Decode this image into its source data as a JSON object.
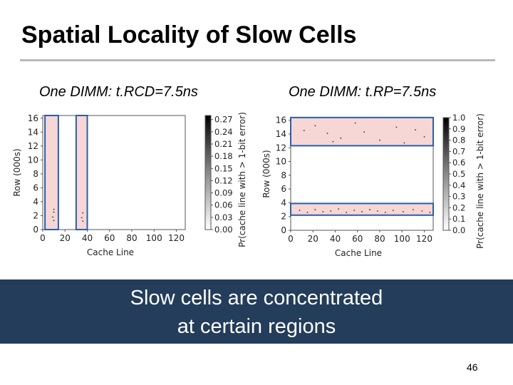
{
  "slide": {
    "title": "Spatial Locality of Slow Cells",
    "banner_line1": "Slow cells are concentrated",
    "banner_line2": "at certain regions",
    "page_number": "46"
  },
  "chart_data": [
    {
      "type": "heatmap",
      "title": "One DIMM: t.RCD=7.5ns",
      "xlabel": "Cache Line",
      "ylabel": "Row (000s)",
      "xlim": [
        0,
        128
      ],
      "ylim": [
        0,
        16.384
      ],
      "x_ticks": [
        0,
        20,
        40,
        60,
        80,
        100,
        120
      ],
      "y_ticks": [
        0,
        2,
        4,
        6,
        8,
        10,
        12,
        14,
        16
      ],
      "colorbar_label": "Pr(cache line with > 1-bit error)",
      "colorbar_ticks": [
        "0.00",
        "0.03",
        "0.06",
        "0.09",
        "0.12",
        "0.15",
        "0.18",
        "0.21",
        "0.24",
        "0.27"
      ],
      "colorbar_range": [
        0,
        0.28
      ],
      "highlight_color": "#2a5fa8",
      "slow_region_color": "#f7d6d6",
      "slow_regions": [
        {
          "x": [
            2,
            14
          ],
          "y": [
            0,
            16.384
          ]
        },
        {
          "x": [
            30,
            40
          ],
          "y": [
            0,
            16.384
          ]
        }
      ],
      "dark_points": [
        {
          "x": 10,
          "y": 2.9
        },
        {
          "x": 10,
          "y": 2.5
        },
        {
          "x": 9,
          "y": 1.8
        },
        {
          "x": 10,
          "y": 1.3
        },
        {
          "x": 36,
          "y": 2.4
        },
        {
          "x": 35,
          "y": 1.7
        },
        {
          "x": 36,
          "y": 1.2
        }
      ]
    },
    {
      "type": "heatmap",
      "title": "One DIMM: t.RP=7.5ns",
      "xlabel": "Cache Line",
      "ylabel": "Row (000s)",
      "xlim": [
        0,
        128
      ],
      "ylim": [
        0,
        16.384
      ],
      "x_ticks": [
        0,
        20,
        40,
        60,
        80,
        100,
        120
      ],
      "y_ticks": [
        0,
        2,
        4,
        6,
        8,
        10,
        12,
        14,
        16
      ],
      "colorbar_label": "Pr(cache line with > 1-bit error)",
      "colorbar_ticks": [
        "0.0",
        "0.1",
        "0.2",
        "0.3",
        "0.4",
        "0.5",
        "0.6",
        "0.7",
        "0.8",
        "0.9",
        "1.0"
      ],
      "colorbar_range": [
        0,
        1.0
      ],
      "highlight_color": "#2a5fa8",
      "slow_region_color": "#f7d6d6",
      "slow_regions": [
        {
          "x": [
            0,
            128
          ],
          "y": [
            12.3,
            16.4
          ]
        },
        {
          "x": [
            0,
            128
          ],
          "y": [
            2.2,
            3.9
          ]
        }
      ],
      "dark_points": [
        {
          "x": 12,
          "y": 14.5
        },
        {
          "x": 22,
          "y": 15.2
        },
        {
          "x": 33,
          "y": 14.1
        },
        {
          "x": 45,
          "y": 13.4
        },
        {
          "x": 58,
          "y": 15.6
        },
        {
          "x": 66,
          "y": 14.3
        },
        {
          "x": 80,
          "y": 13.1
        },
        {
          "x": 95,
          "y": 15.0
        },
        {
          "x": 112,
          "y": 14.6
        },
        {
          "x": 120,
          "y": 13.6
        },
        {
          "x": 38,
          "y": 12.9
        },
        {
          "x": 102,
          "y": 12.7
        },
        {
          "x": 8,
          "y": 2.9
        },
        {
          "x": 15,
          "y": 2.6
        },
        {
          "x": 22,
          "y": 3.0
        },
        {
          "x": 29,
          "y": 2.7
        },
        {
          "x": 36,
          "y": 2.8
        },
        {
          "x": 43,
          "y": 3.1
        },
        {
          "x": 50,
          "y": 2.6
        },
        {
          "x": 57,
          "y": 2.9
        },
        {
          "x": 64,
          "y": 2.7
        },
        {
          "x": 71,
          "y": 3.0
        },
        {
          "x": 78,
          "y": 2.8
        },
        {
          "x": 85,
          "y": 2.6
        },
        {
          "x": 92,
          "y": 2.9
        },
        {
          "x": 101,
          "y": 2.7
        },
        {
          "x": 110,
          "y": 3.0
        },
        {
          "x": 118,
          "y": 2.8
        },
        {
          "x": 125,
          "y": 2.6
        }
      ]
    }
  ]
}
